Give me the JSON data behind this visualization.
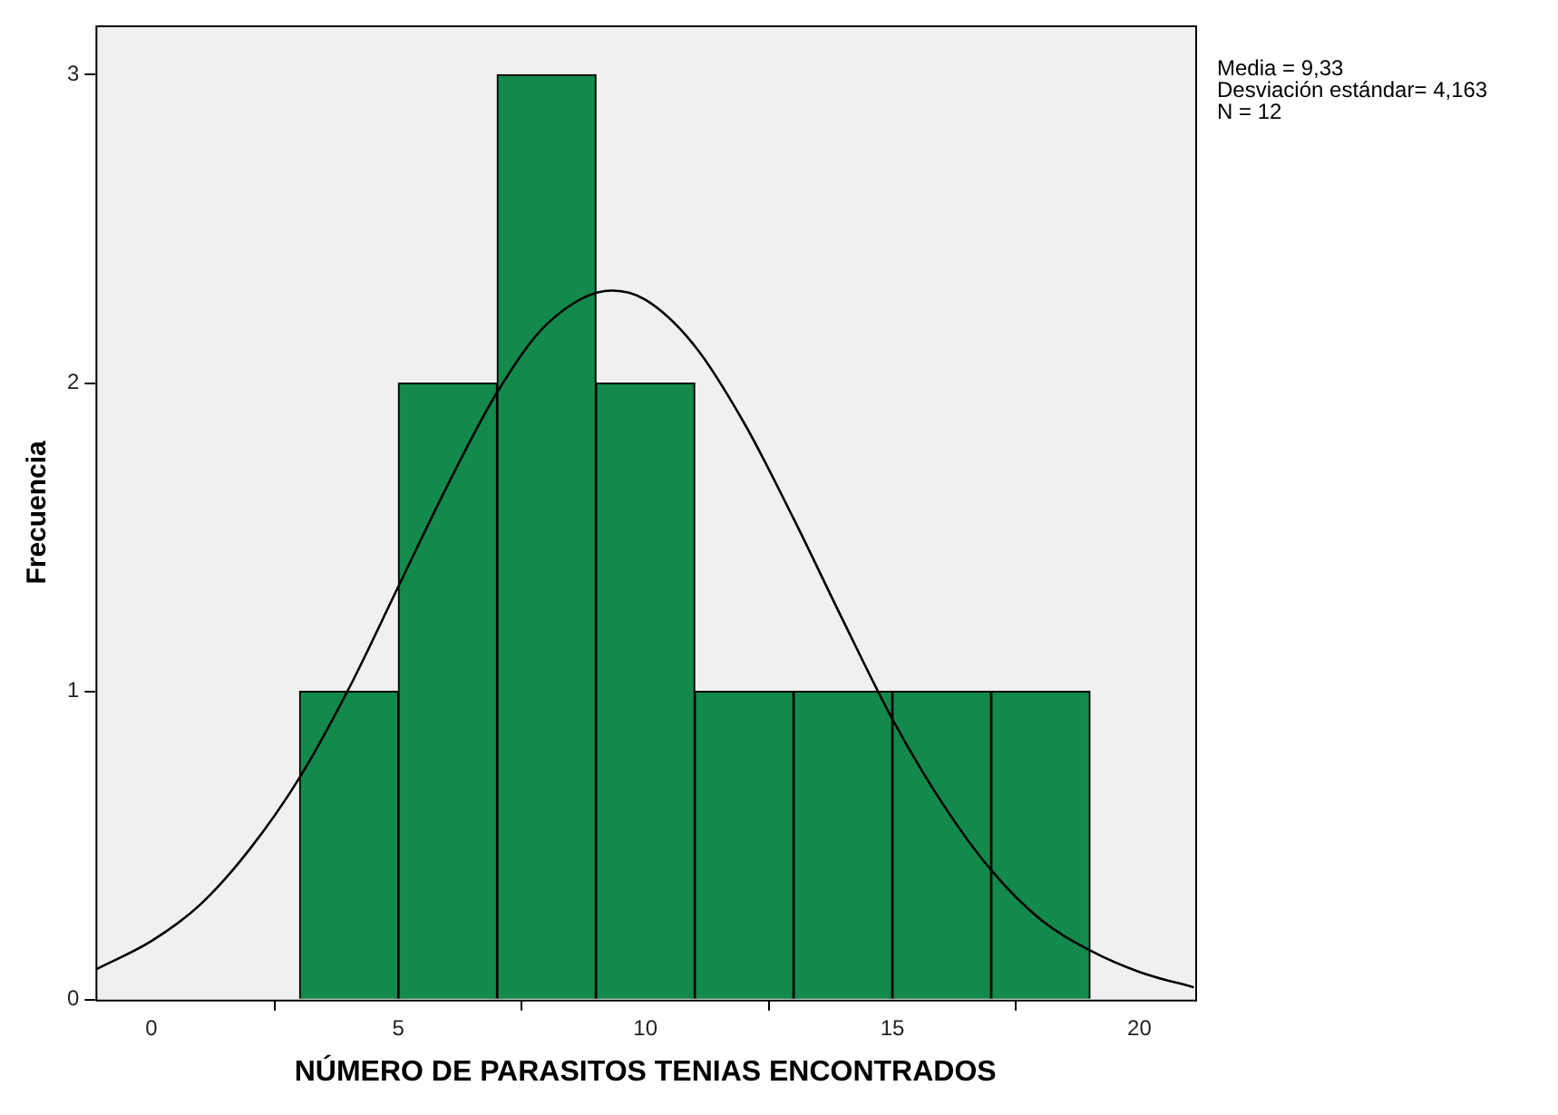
{
  "chart_data": {
    "type": "histogram",
    "xlabel": "NÚMERO DE PARASITOS TENIAS ENCONTRADOS",
    "ylabel": "Frecuencia",
    "bins": [
      3,
      5,
      7,
      9,
      11,
      13,
      15,
      17,
      19
    ],
    "values": [
      1,
      2,
      3,
      2,
      1,
      1,
      1,
      1
    ],
    "color": "#138a4b",
    "series": [
      {
        "type": "line",
        "color": "#000000",
        "x": [
          -1.1,
          0,
          1,
          2,
          3,
          4,
          5,
          6,
          7,
          8,
          9.33,
          10,
          11,
          12,
          13,
          14,
          15,
          16,
          17,
          18,
          19,
          20,
          21.1
        ],
        "values": [
          0.1,
          0.19,
          0.31,
          0.49,
          0.72,
          1.01,
          1.34,
          1.67,
          1.97,
          2.19,
          2.3,
          2.27,
          2.12,
          1.87,
          1.56,
          1.23,
          0.91,
          0.64,
          0.42,
          0.26,
          0.16,
          0.09,
          0.04
        ]
      }
    ],
    "marker": "none",
    "xlim": [
      -1.13,
      21.13
    ],
    "xticks": [
      0,
      5,
      10,
      15,
      20
    ],
    "ylim": [
      0,
      3.16
    ],
    "yticks": [
      0,
      1,
      2,
      3
    ],
    "annotations": [
      "Media = 9,33",
      "Desviación estándar= 4,163",
      "N = 12"
    ]
  }
}
